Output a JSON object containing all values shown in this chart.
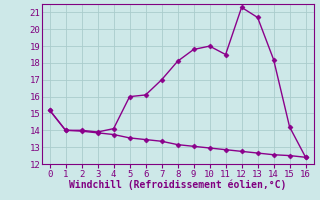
{
  "xlabel": "Windchill (Refroidissement éolien,°C)",
  "x": [
    0,
    1,
    2,
    3,
    4,
    5,
    6,
    7,
    8,
    9,
    10,
    11,
    12,
    13,
    14,
    15,
    16
  ],
  "upper_y": [
    15.2,
    14.0,
    14.0,
    13.9,
    14.1,
    16.0,
    16.1,
    17.0,
    18.1,
    18.8,
    19.0,
    18.5,
    21.3,
    20.7,
    18.2,
    14.2,
    12.4
  ],
  "lower_y": [
    15.2,
    14.0,
    13.95,
    13.85,
    13.75,
    13.55,
    13.45,
    13.35,
    13.15,
    13.05,
    12.95,
    12.85,
    12.75,
    12.65,
    12.55,
    12.5,
    12.4
  ],
  "line_color": "#8B008B",
  "bg_color": "#cde8e8",
  "grid_color": "#aacccc",
  "ylim": [
    12,
    21.5
  ],
  "xlim": [
    -0.5,
    16.5
  ],
  "yticks": [
    12,
    13,
    14,
    15,
    16,
    17,
    18,
    19,
    20,
    21
  ],
  "xticks": [
    0,
    1,
    2,
    3,
    4,
    5,
    6,
    7,
    8,
    9,
    10,
    11,
    12,
    13,
    14,
    15,
    16
  ],
  "marker": "D",
  "marker_size": 2.5,
  "linewidth": 1.0,
  "xlabel_fontsize": 7.0,
  "tick_fontsize": 6.5,
  "tick_color": "#800080"
}
